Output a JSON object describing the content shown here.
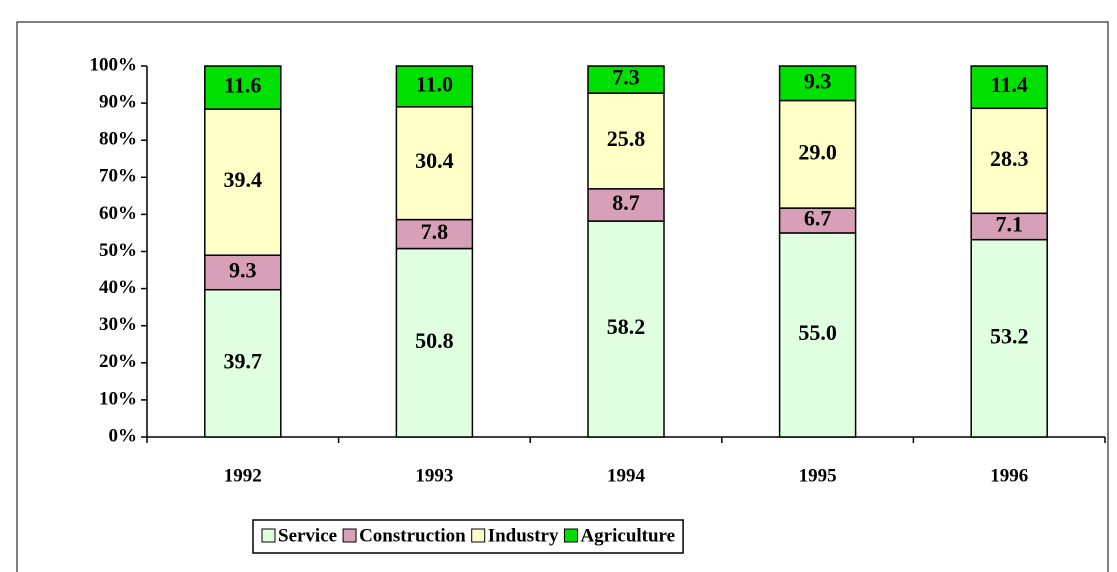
{
  "chart_data": {
    "type": "stacked_bar",
    "categories": [
      "1992",
      "1993",
      "1994",
      "1995",
      "1996"
    ],
    "series": [
      {
        "name": "Service",
        "color": "#e0ffe0",
        "values": [
          39.7,
          50.8,
          58.2,
          55.0,
          53.2
        ],
        "value_labels": [
          "39.7",
          "50.8",
          "58.2",
          "55.0",
          "53.2"
        ]
      },
      {
        "name": "Construction",
        "color": "#d8a0b8",
        "values": [
          9.3,
          7.8,
          8.7,
          6.7,
          7.1
        ],
        "value_labels": [
          "9.3",
          "7.8",
          "8.7",
          "6.7",
          "7.1"
        ]
      },
      {
        "name": "Industry",
        "color": "#ffffc8",
        "values": [
          39.4,
          30.4,
          25.8,
          29.0,
          28.3
        ],
        "value_labels": [
          "39.4",
          "30.4",
          "25.8",
          "29.0",
          "28.3"
        ]
      },
      {
        "name": "Agriculture",
        "color": "#00e000",
        "values": [
          11.6,
          11.0,
          7.3,
          9.3,
          11.4
        ],
        "value_labels": [
          "11.6",
          "11.0",
          "7.3",
          "9.3",
          "11.4"
        ]
      }
    ],
    "ylim": [
      0,
      100
    ],
    "yticks": [
      {
        "value": 0,
        "label": "0%"
      },
      {
        "value": 10,
        "label": "10%"
      },
      {
        "value": 20,
        "label": "20%"
      },
      {
        "value": 30,
        "label": "30%"
      },
      {
        "value": 40,
        "label": "40%"
      },
      {
        "value": 50,
        "label": "50%"
      },
      {
        "value": 60,
        "label": "60%"
      },
      {
        "value": 70,
        "label": "70%"
      },
      {
        "value": 80,
        "label": "80%"
      },
      {
        "value": 90,
        "label": "90%"
      },
      {
        "value": 100,
        "label": "100%"
      }
    ],
    "grid": false,
    "legend": "bottom"
  }
}
